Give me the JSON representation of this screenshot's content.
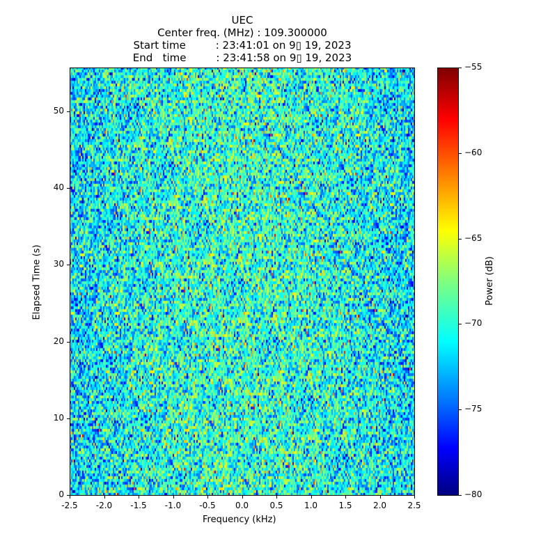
{
  "chart_data": {
    "type": "heatmap",
    "title_lines": [
      "UEC",
      "Center freq. (MHz) : 109.300000",
      "Start time         : 23:41:01 on 9▯ 19, 2023",
      "End   time         : 23:41:58 on 9▯ 19, 2023"
    ],
    "xlabel": "Frequency (kHz)",
    "ylabel": "Elapsed Time (s)",
    "xlim": [
      -2.5,
      2.5
    ],
    "ylim": [
      0,
      55.7
    ],
    "xticks": [
      "-2.5",
      "-2.0",
      "-1.5",
      "-1.0",
      "-0.5",
      "0.0",
      "0.5",
      "1.0",
      "1.5",
      "2.0",
      "2.5"
    ],
    "xtick_values": [
      -2.5,
      -2.0,
      -1.5,
      -1.0,
      -0.5,
      0.0,
      0.5,
      1.0,
      1.5,
      2.0,
      2.5
    ],
    "yticks": [
      "0",
      "10",
      "20",
      "30",
      "40",
      "50"
    ],
    "ytick_values": [
      0,
      10,
      20,
      30,
      40,
      50
    ],
    "colorbar": {
      "label": "Power (dB)",
      "range": [
        -80,
        -55
      ],
      "ticks": [
        "−80",
        "−75",
        "−70",
        "−65",
        "−60",
        "−55"
      ],
      "tick_values": [
        -80,
        -75,
        -70,
        -65,
        -60,
        -55
      ],
      "colormap": "jet"
    },
    "z_noise": {
      "mean_db": -69.5,
      "std_db": 3.2,
      "edge_drop_db": 2
    }
  }
}
